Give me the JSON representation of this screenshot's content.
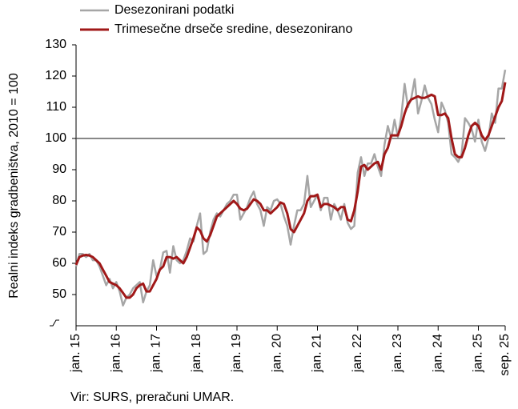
{
  "chart_data": {
    "type": "line",
    "y_axis_label": "Realni indeks gradbeništva, 2010 = 100",
    "source": "Vir: SURS, preračuni UMAR.",
    "categories": [
      "jan. 15",
      null,
      null,
      null,
      null,
      null,
      null,
      null,
      null,
      null,
      null,
      null,
      "jan. 16",
      null,
      null,
      null,
      null,
      null,
      null,
      null,
      null,
      null,
      null,
      null,
      "jan. 17",
      null,
      null,
      null,
      null,
      null,
      null,
      null,
      null,
      null,
      null,
      null,
      "jan. 18",
      null,
      null,
      null,
      null,
      null,
      null,
      null,
      null,
      null,
      null,
      null,
      "jan. 19",
      null,
      null,
      null,
      null,
      null,
      null,
      null,
      null,
      null,
      null,
      null,
      "jan. 20",
      null,
      null,
      null,
      null,
      null,
      null,
      null,
      null,
      null,
      null,
      null,
      "jan. 21",
      null,
      null,
      null,
      null,
      null,
      null,
      null,
      null,
      null,
      null,
      null,
      "jan. 22",
      null,
      null,
      null,
      null,
      null,
      null,
      null,
      null,
      null,
      null,
      null,
      "jan. 23",
      null,
      null,
      null,
      null,
      null,
      null,
      null,
      null,
      null,
      null,
      null,
      "jan. 24",
      null,
      null,
      null,
      null,
      null,
      null,
      null,
      null,
      null,
      null,
      null,
      "jan. 25",
      null,
      null,
      null,
      null,
      null,
      null,
      null,
      "sep. 25"
    ],
    "series": [
      {
        "name": "Desezonirani podatki",
        "color": "#a6a6a6",
        "width": 2.5,
        "values": [
          59,
          63,
          63,
          62,
          63,
          61,
          61,
          59,
          56,
          53,
          55,
          52,
          54,
          51,
          46.5,
          49,
          50,
          52,
          53,
          54,
          47.5,
          51,
          53,
          61,
          56,
          58,
          63.5,
          64,
          57,
          65.5,
          61,
          60,
          61,
          64,
          68,
          67,
          72,
          76,
          63,
          64,
          70,
          74,
          76,
          75,
          77,
          79,
          80,
          82,
          82,
          74,
          76,
          78,
          81,
          83,
          79,
          77,
          72,
          78,
          77,
          80,
          80.5,
          79,
          75,
          72,
          66,
          72,
          77,
          77,
          79,
          88,
          78,
          80,
          82,
          77,
          81,
          81,
          74,
          79,
          77,
          74,
          79,
          73,
          71,
          72,
          89,
          94,
          88,
          92,
          92,
          95,
          91,
          88,
          98,
          104,
          100,
          106,
          100.5,
          107,
          117.5,
          110,
          113,
          119,
          108,
          112,
          117,
          113,
          111,
          106,
          102,
          111.5,
          109,
          105,
          95,
          94,
          92.5,
          95,
          106.5,
          105,
          103,
          99,
          106,
          99,
          96,
          100,
          108,
          105,
          116,
          116,
          122
        ]
      },
      {
        "name": "Trimesečne drseče sredine, desezonirano",
        "color": "#a01818",
        "width": 3,
        "values": [
          59.5,
          62,
          62.5,
          62.7,
          62.5,
          62,
          61,
          60,
          58,
          56,
          54,
          53.5,
          53,
          52,
          50.5,
          49,
          49,
          50,
          52,
          53,
          53.5,
          51,
          51,
          53,
          55,
          58,
          59,
          62,
          62,
          61.5,
          62,
          61,
          60,
          62,
          65,
          68,
          71.5,
          70.5,
          68,
          67,
          69,
          72,
          75,
          76,
          77,
          78,
          79,
          80,
          79,
          77.5,
          77,
          77.5,
          79,
          80.5,
          80,
          79,
          77,
          77,
          76,
          77,
          78,
          79.5,
          79,
          76,
          71,
          70,
          72,
          74,
          76,
          80,
          81.5,
          81.5,
          82,
          78,
          79,
          79,
          78.5,
          78,
          77,
          78,
          78,
          74,
          73.5,
          77,
          83,
          91,
          91.5,
          90,
          91,
          92,
          92.5,
          90,
          95,
          97,
          101,
          101,
          101,
          104,
          108,
          111,
          112.5,
          113,
          113.5,
          113,
          113,
          113.5,
          114,
          113.5,
          107.5,
          107.5,
          108,
          106.5,
          100,
          95,
          94,
          94,
          97,
          101,
          104,
          105,
          104,
          101,
          99.5,
          101,
          104,
          107,
          110,
          112,
          118
        ]
      }
    ],
    "ylim": [
      40,
      130
    ],
    "yticks": [
      50,
      60,
      70,
      80,
      90,
      100,
      110,
      120,
      130
    ],
    "reference_line": 100,
    "legend": "top-left"
  }
}
